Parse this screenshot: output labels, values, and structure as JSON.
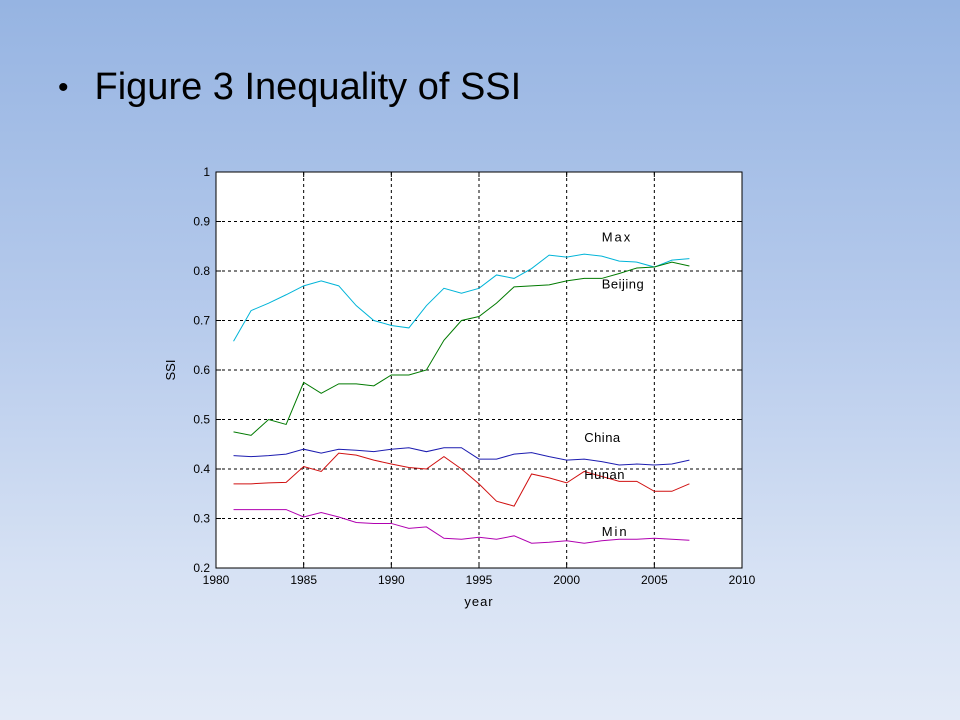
{
  "slide": {
    "bullet": "•",
    "title": "Figure 3 Inequality of SSI"
  },
  "chart_data": {
    "type": "line",
    "title": "",
    "xlabel": "year",
    "ylabel": "SSI",
    "xlim": [
      1980,
      2010
    ],
    "ylim": [
      0.2,
      1.0
    ],
    "xticks": [
      1980,
      1985,
      1990,
      1995,
      2000,
      2005,
      2010
    ],
    "yticks": [
      0.2,
      0.3,
      0.4,
      0.5,
      0.6,
      0.7,
      0.8,
      0.9,
      1.0
    ],
    "ytick_labels": [
      "0.2",
      "0.3",
      "0.4",
      "0.5",
      "0.6",
      "0.7",
      "0.8",
      "0.9",
      "1"
    ],
    "grid": true,
    "x": [
      1981,
      1982,
      1983,
      1984,
      1985,
      1986,
      1987,
      1988,
      1989,
      1990,
      1991,
      1992,
      1993,
      1994,
      1995,
      1996,
      1997,
      1998,
      1999,
      2000,
      2001,
      2002,
      2003,
      2004,
      2005,
      2006,
      2007
    ],
    "series": [
      {
        "name": "Max",
        "color": "#00b4d8",
        "label_at": [
          2002,
          0.86
        ],
        "values": [
          0.658,
          0.72,
          0.735,
          0.752,
          0.77,
          0.78,
          0.77,
          0.73,
          0.7,
          0.69,
          0.685,
          0.73,
          0.765,
          0.755,
          0.765,
          0.792,
          0.785,
          0.805,
          0.832,
          0.828,
          0.834,
          0.83,
          0.82,
          0.818,
          0.808,
          0.822,
          0.825
        ]
      },
      {
        "name": "Beijing",
        "color": "#007a00",
        "label_at": [
          2002,
          0.765
        ],
        "values": [
          0.475,
          0.468,
          0.5,
          0.49,
          0.575,
          0.553,
          0.572,
          0.572,
          0.568,
          0.59,
          0.59,
          0.6,
          0.66,
          0.7,
          0.708,
          0.735,
          0.768,
          0.77,
          0.772,
          0.78,
          0.785,
          0.785,
          0.795,
          0.806,
          0.808,
          0.818,
          0.81
        ]
      },
      {
        "name": "China",
        "color": "#1c1cb0",
        "label_at": [
          2001,
          0.455
        ],
        "values": [
          0.427,
          0.425,
          0.427,
          0.43,
          0.44,
          0.432,
          0.44,
          0.438,
          0.435,
          0.44,
          0.443,
          0.435,
          0.443,
          0.443,
          0.42,
          0.42,
          0.43,
          0.433,
          0.425,
          0.418,
          0.42,
          0.415,
          0.408,
          0.41,
          0.408,
          0.41,
          0.418
        ]
      },
      {
        "name": "Hunan",
        "color": "#d01010",
        "label_at": [
          2001,
          0.38
        ],
        "values": [
          0.37,
          0.37,
          0.372,
          0.373,
          0.405,
          0.395,
          0.432,
          0.428,
          0.418,
          0.41,
          0.403,
          0.4,
          0.425,
          0.4,
          0.37,
          0.335,
          0.325,
          0.39,
          0.382,
          0.372,
          0.395,
          0.385,
          0.375,
          0.375,
          0.355,
          0.355,
          0.37
        ]
      },
      {
        "name": "Min",
        "color": "#b000b0",
        "label_at": [
          2002,
          0.265
        ],
        "values": [
          0.318,
          0.318,
          0.318,
          0.318,
          0.303,
          0.312,
          0.303,
          0.292,
          0.29,
          0.29,
          0.28,
          0.283,
          0.26,
          0.258,
          0.262,
          0.258,
          0.265,
          0.25,
          0.252,
          0.255,
          0.25,
          0.255,
          0.258,
          0.258,
          0.26,
          0.258,
          0.256
        ]
      }
    ]
  }
}
